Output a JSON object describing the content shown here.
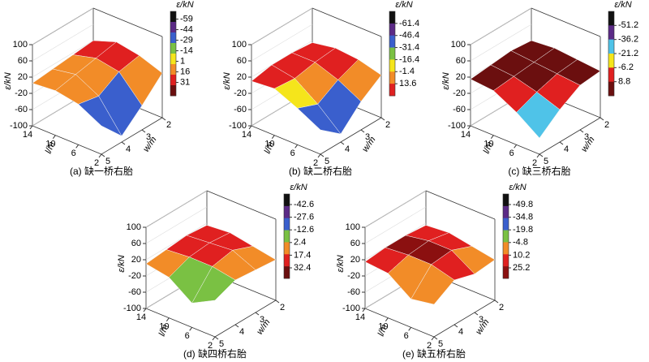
{
  "chart_data": [
    {
      "type": "surface3d",
      "caption": "(a) 缺一桥右胎",
      "zlabel": "ε/kN",
      "xlabel": "l/m",
      "ylabel": "w/m",
      "x": [
        2,
        6,
        10,
        14
      ],
      "y": [
        2,
        3,
        4,
        5
      ],
      "xlim": [
        2,
        14
      ],
      "ylim": [
        2,
        5
      ],
      "zlim": [
        -100,
        100
      ],
      "xticks": [
        14,
        10,
        6,
        2
      ],
      "yticks": [
        5,
        4,
        3,
        2
      ],
      "zticks": [
        100,
        60,
        20,
        -20,
        -60,
        -100
      ],
      "z": [
        [
          10,
          -40,
          -85,
          -30
        ],
        [
          30,
          20,
          -10,
          0
        ],
        [
          40,
          30,
          20,
          10
        ],
        [
          20,
          15,
          10,
          5
        ]
      ],
      "colorbar": {
        "label": "ε/kN",
        "lim": [
          -70,
          50
        ],
        "ticks": [
          -59,
          -44,
          -29,
          -14,
          1,
          16,
          31
        ],
        "colors": [
          "#111111",
          "#5b2a86",
          "#3a5fcd",
          "#7ac143",
          "#f5e51b",
          "#f28c28",
          "#e02020",
          "#6b0f0f"
        ]
      }
    },
    {
      "type": "surface3d",
      "caption": "(b) 缺二桥右胎",
      "zlabel": "ε/kN",
      "xlabel": "l/m",
      "ylabel": "w/m",
      "x": [
        2,
        6,
        10,
        14
      ],
      "y": [
        2,
        3,
        4,
        5
      ],
      "xlim": [
        2,
        14
      ],
      "ylim": [
        2,
        5
      ],
      "zlim": [
        -100,
        100
      ],
      "xticks": [
        14,
        10,
        6,
        2
      ],
      "yticks": [
        5,
        4,
        3,
        2
      ],
      "zticks": [
        100,
        60,
        20,
        -20,
        -60,
        -100
      ],
      "z": [
        [
          5,
          -30,
          -80,
          -40
        ],
        [
          20,
          0,
          -30,
          -10
        ],
        [
          25,
          20,
          10,
          15
        ],
        [
          15,
          20,
          20,
          10
        ]
      ],
      "colorbar": {
        "label": "ε/kN",
        "lim": [
          -76.4,
          28.6
        ],
        "ticks": [
          -61.4,
          -46.4,
          -31.4,
          -16.4,
          -1.4,
          13.6
        ],
        "colors": [
          "#111111",
          "#5b2a86",
          "#3a5fcd",
          "#7ac143",
          "#f5e51b",
          "#f28c28",
          "#e02020"
        ]
      }
    },
    {
      "type": "surface3d",
      "caption": "(c) 缺三桥右胎",
      "zlabel": "ε/kN",
      "xlabel": "l/m",
      "ylabel": "w/m",
      "x": [
        2,
        6,
        10,
        14
      ],
      "y": [
        2,
        3,
        4,
        5
      ],
      "xlim": [
        2,
        14
      ],
      "ylim": [
        2,
        5
      ],
      "zlim": [
        -100,
        100
      ],
      "xticks": [
        14,
        10,
        6,
        2
      ],
      "yticks": [
        5,
        4,
        3,
        2
      ],
      "zticks": [
        100,
        60,
        20,
        -20,
        -60,
        -100
      ],
      "z": [
        [
          15,
          10,
          -20,
          -60
        ],
        [
          20,
          15,
          0,
          -20
        ],
        [
          25,
          20,
          15,
          10
        ],
        [
          20,
          25,
          20,
          15
        ]
      ],
      "colorbar": {
        "label": "ε/kN",
        "lim": [
          -66.2,
          23.8
        ],
        "ticks": [
          -51.2,
          -36.2,
          -21.2,
          -6.2,
          8.8
        ],
        "colors": [
          "#111111",
          "#5b2a86",
          "#4fc3e8",
          "#f5e51b",
          "#e02020",
          "#6b0f0f"
        ]
      }
    },
    {
      "type": "surface3d",
      "caption": "(d) 缺四桥右胎",
      "zlabel": "ε/kN",
      "xlabel": "l/m",
      "ylabel": "w/m",
      "x": [
        2,
        6,
        10,
        14
      ],
      "y": [
        2,
        3,
        4,
        5
      ],
      "xlim": [
        2,
        14
      ],
      "ylim": [
        2,
        5
      ],
      "zlim": [
        -100,
        100
      ],
      "xticks": [
        14,
        10,
        6,
        2
      ],
      "yticks": [
        5,
        4,
        3,
        2
      ],
      "zticks": [
        100,
        60,
        20,
        -20,
        -60,
        -100
      ],
      "z": [
        [
          0,
          5,
          10,
          -10
        ],
        [
          10,
          30,
          20,
          -40
        ],
        [
          20,
          25,
          20,
          0
        ],
        [
          15,
          20,
          15,
          10
        ]
      ],
      "colorbar": {
        "label": "ε/kN",
        "lim": [
          -55.1,
          44.9
        ],
        "ticks": [
          -42.6,
          -27.6,
          -12.6,
          2.4,
          17.4,
          32.4
        ],
        "colors": [
          "#111111",
          "#5b2a86",
          "#3a5fcd",
          "#7ac143",
          "#f28c28",
          "#e02020",
          "#6b0f0f"
        ]
      }
    },
    {
      "type": "surface3d",
      "caption": "(e) 缺五桥右胎",
      "zlabel": "ε/kN",
      "xlabel": "l/m",
      "ylabel": "w/m",
      "x": [
        2,
        6,
        10,
        14
      ],
      "y": [
        2,
        3,
        4,
        5
      ],
      "xlim": [
        2,
        14
      ],
      "ylim": [
        2,
        5
      ],
      "zlim": [
        -100,
        100
      ],
      "xticks": [
        14,
        10,
        6,
        2
      ],
      "yticks": [
        5,
        4,
        3,
        2
      ],
      "zticks": [
        100,
        60,
        20,
        -20,
        -60,
        -100
      ],
      "z": [
        [
          0,
          -5,
          10,
          -20
        ],
        [
          10,
          30,
          25,
          -30
        ],
        [
          20,
          30,
          25,
          10
        ],
        [
          15,
          20,
          20,
          15
        ]
      ],
      "colorbar": {
        "label": "ε/kN",
        "lim": [
          -62.3,
          37.7
        ],
        "ticks": [
          -49.8,
          -34.8,
          -19.8,
          -4.8,
          10.2,
          25.2
        ],
        "colors": [
          "#111111",
          "#5b2a86",
          "#3a5fcd",
          "#7ac143",
          "#f28c28",
          "#e02020",
          "#8b1010"
        ]
      }
    }
  ]
}
